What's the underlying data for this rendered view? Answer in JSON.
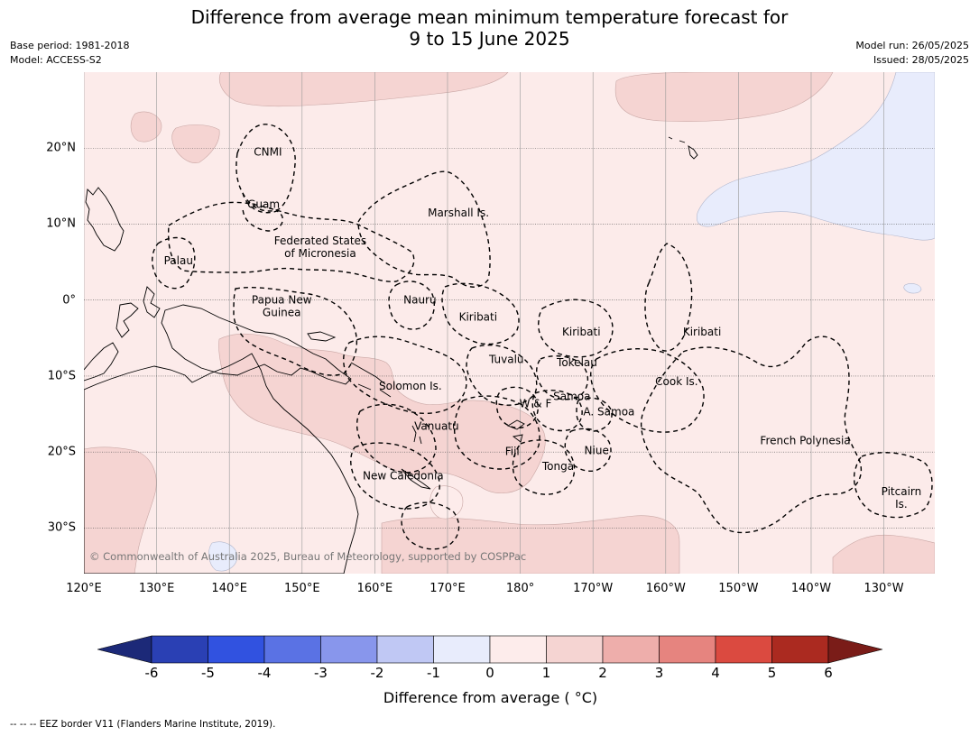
{
  "title": {
    "line1": "Difference from average mean minimum temperature forecast for",
    "line2": "9 to 15 June 2025"
  },
  "meta": {
    "base_period": "Base period: 1981-2018",
    "model": "Model: ACCESS-S2",
    "model_run": "Model run: 26/05/2025",
    "issued": "Issued: 28/05/2025"
  },
  "map": {
    "lon_range": [
      120,
      237
    ],
    "lat_range": [
      -36,
      30
    ],
    "lon_ticks": [
      {
        "lon": 120,
        "label": "120°E"
      },
      {
        "lon": 130,
        "label": "130°E"
      },
      {
        "lon": 140,
        "label": "140°E"
      },
      {
        "lon": 150,
        "label": "150°E"
      },
      {
        "lon": 160,
        "label": "160°E"
      },
      {
        "lon": 170,
        "label": "170°E"
      },
      {
        "lon": 180,
        "label": "180°"
      },
      {
        "lon": 190,
        "label": "170°W"
      },
      {
        "lon": 200,
        "label": "160°W"
      },
      {
        "lon": 210,
        "label": "150°W"
      },
      {
        "lon": 220,
        "label": "140°W"
      },
      {
        "lon": 230,
        "label": "130°W"
      }
    ],
    "lat_ticks": [
      {
        "lat": 20,
        "label": "20°N"
      },
      {
        "lat": 10,
        "label": "10°N"
      },
      {
        "lat": 0,
        "label": "0°"
      },
      {
        "lat": -10,
        "label": "10°S"
      },
      {
        "lat": -20,
        "label": "20°S"
      },
      {
        "lat": -30,
        "label": "30°S"
      }
    ],
    "region_labels": [
      {
        "lines": [
          "CNMI"
        ],
        "lon": 145.3,
        "lat": 19.5
      },
      {
        "lines": [
          "Guam"
        ],
        "lon": 144.7,
        "lat": 12.6
      },
      {
        "lines": [
          "Marshall Is."
        ],
        "lon": 171.5,
        "lat": 11.5
      },
      {
        "lines": [
          "Federated States",
          "of Micronesia"
        ],
        "lon": 152.5,
        "lat": 7.0
      },
      {
        "lines": [
          "Palau"
        ],
        "lon": 133,
        "lat": 5.2
      },
      {
        "lines": [
          "Papua New",
          "Guinea"
        ],
        "lon": 147.2,
        "lat": -0.8
      },
      {
        "lines": [
          "Nauru"
        ],
        "lon": 166.2,
        "lat": 0.0
      },
      {
        "lines": [
          "Kiribati"
        ],
        "lon": 174.2,
        "lat": -2.2
      },
      {
        "lines": [
          "Kiribati"
        ],
        "lon": 188.4,
        "lat": -4.2
      },
      {
        "lines": [
          "Kiribati"
        ],
        "lon": 205,
        "lat": -4.2
      },
      {
        "lines": [
          "Tuvalu"
        ],
        "lon": 178.1,
        "lat": -7.8
      },
      {
        "lines": [
          "Tokelau"
        ],
        "lon": 187.8,
        "lat": -8.2
      },
      {
        "lines": [
          "Cook Is."
        ],
        "lon": 201.5,
        "lat": -10.7
      },
      {
        "lines": [
          "Solomon Is."
        ],
        "lon": 164.9,
        "lat": -11.3
      },
      {
        "lines": [
          "Samoa"
        ],
        "lon": 187.1,
        "lat": -12.7
      },
      {
        "lines": [
          "W & F"
        ],
        "lon": 182.1,
        "lat": -13.6
      },
      {
        "lines": [
          "A. Samoa"
        ],
        "lon": 192.2,
        "lat": -14.7
      },
      {
        "lines": [
          "Vanuatu"
        ],
        "lon": 168.5,
        "lat": -16.6
      },
      {
        "lines": [
          "French Polynesia"
        ],
        "lon": 219.2,
        "lat": -18.5
      },
      {
        "lines": [
          "Fiji"
        ],
        "lon": 178.9,
        "lat": -19.9
      },
      {
        "lines": [
          "Niue"
        ],
        "lon": 190.5,
        "lat": -19.8
      },
      {
        "lines": [
          "Tonga"
        ],
        "lon": 185.2,
        "lat": -21.9
      },
      {
        "lines": [
          "New Caledonia"
        ],
        "lon": 163.9,
        "lat": -23.1
      },
      {
        "lines": [
          "Pitcairn",
          "Is."
        ],
        "lon": 232.4,
        "lat": -26.0
      }
    ],
    "copyright": "© Commonwealth of Australia 2025, Bureau of Meteorology, supported by COSPPac"
  },
  "colorbar": {
    "bounds": [
      -6,
      -5,
      -4,
      -3,
      -2,
      -1,
      0,
      1,
      2,
      3,
      4,
      5,
      6
    ],
    "colors": [
      "#2a40b4",
      "#3152e0",
      "#5a72e4",
      "#8896ec",
      "#c0c8f4",
      "#e8ecfc",
      "#fdeceb",
      "#f5d4d2",
      "#eeaeab",
      "#e6847f",
      "#db4a40",
      "#ab2a20"
    ],
    "under_color": "#1c2978",
    "over_color": "#7a1c18",
    "label": "Difference from average ( °C)"
  },
  "footnote": "--  --  -- EEZ border V11 (Flanders Marine Institute, 2019).",
  "colors": {
    "background_anomaly": "#fcebea",
    "warm_anomaly": "#f5d4d2",
    "cool_anomaly": "#e8ecfc",
    "gridline": "#999999"
  }
}
